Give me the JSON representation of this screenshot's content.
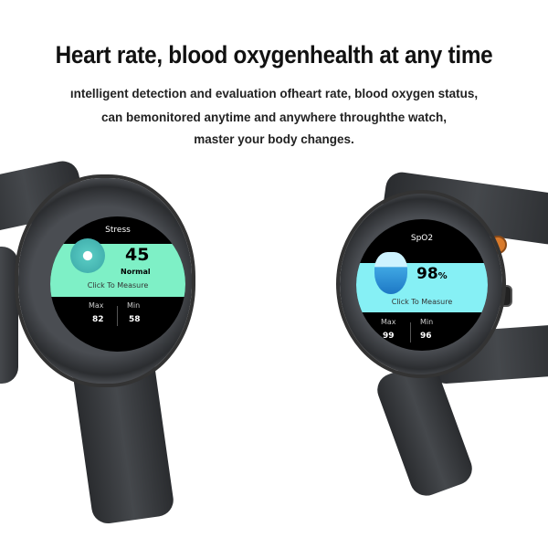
{
  "heading": "Heart rate, blood oxygenhealth at any time",
  "subtitle": [
    "ıntelligent detection and evaluation ofheart rate, blood oxygen status,",
    "can bemonitored anytime and anywhere throughthe watch,",
    "master your body changes."
  ],
  "left_watch": {
    "title": "Stress",
    "value": "45",
    "status": "Normal",
    "action": "Click To Measure",
    "max_label": "Max",
    "max_value": "82",
    "min_label": "Min",
    "min_value": "58",
    "panel_color": "#7ef0c6"
  },
  "right_watch": {
    "title": "SpO2",
    "value": "98",
    "unit": "%",
    "action": "Click To Measure",
    "max_label": "Max",
    "max_value": "99",
    "min_label": "Min",
    "min_value": "96",
    "panel_color": "#86f0f5",
    "accent": "#d97a2b"
  }
}
